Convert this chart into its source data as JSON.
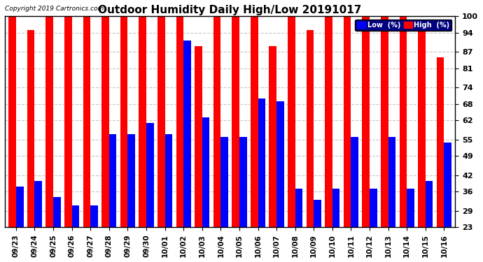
{
  "title": "Outdoor Humidity Daily High/Low 20191017",
  "copyright": "Copyright 2019 Cartronics.com",
  "dates": [
    "09/23",
    "09/24",
    "09/25",
    "09/26",
    "09/27",
    "09/28",
    "09/29",
    "09/30",
    "10/01",
    "10/02",
    "10/03",
    "10/04",
    "10/05",
    "10/06",
    "10/07",
    "10/08",
    "10/09",
    "10/10",
    "10/11",
    "10/12",
    "10/13",
    "10/14",
    "10/15",
    "10/16"
  ],
  "high": [
    100,
    95,
    100,
    100,
    100,
    100,
    100,
    100,
    100,
    100,
    89,
    100,
    100,
    100,
    89,
    100,
    95,
    100,
    100,
    100,
    100,
    100,
    96,
    85
  ],
  "low": [
    38,
    40,
    34,
    31,
    31,
    57,
    57,
    61,
    57,
    91,
    63,
    56,
    56,
    70,
    69,
    37,
    33,
    37,
    56,
    37,
    56,
    37,
    40,
    54
  ],
  "high_color": "#ff0000",
  "low_color": "#0000ff",
  "bg_color": "#ffffff",
  "grid_color": "#c8c8c8",
  "ylim_min": 23,
  "ylim_max": 100,
  "yticks": [
    23,
    29,
    36,
    42,
    49,
    55,
    62,
    68,
    74,
    81,
    87,
    94,
    100
  ],
  "legend_low_label": "Low  (%)",
  "legend_high_label": "High  (%)"
}
